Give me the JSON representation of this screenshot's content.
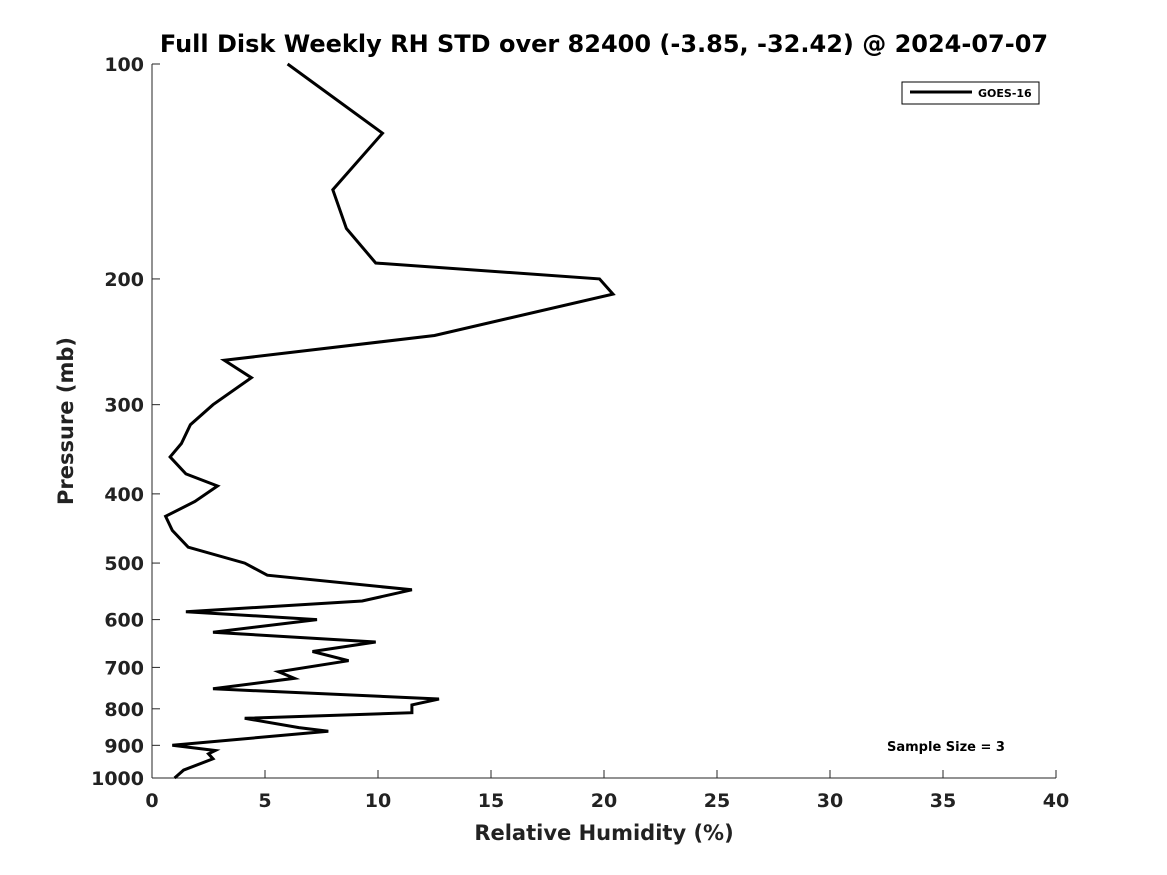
{
  "chart_data": {
    "type": "line",
    "title": "Full Disk Weekly RH STD over 82400 (-3.85, -32.42) @ 2024-07-07",
    "xlabel": "Relative Humidity (%)",
    "ylabel": "Pressure (mb)",
    "xlim": [
      0,
      40
    ],
    "ylim": [
      1000,
      100
    ],
    "y_scale": "log",
    "y_reversed": true,
    "grid": false,
    "legend_position": "top-right",
    "x_ticks": [
      0,
      5,
      10,
      15,
      20,
      25,
      30,
      35,
      40
    ],
    "x_tick_labels": [
      "0",
      "5",
      "10",
      "15",
      "20",
      "25",
      "30",
      "35",
      "40"
    ],
    "y_ticks": [
      100,
      200,
      300,
      400,
      500,
      600,
      700,
      800,
      900,
      1000
    ],
    "y_tick_labels": [
      "100",
      "200",
      "300",
      "400",
      "500",
      "600",
      "700",
      "800",
      "900",
      "1000"
    ],
    "series": [
      {
        "name": "GOES-16",
        "color": "#000000",
        "points": [
          [
            6.0,
            100
          ],
          [
            10.2,
            125
          ],
          [
            8.0,
            150
          ],
          [
            8.6,
            170
          ],
          [
            9.9,
            190
          ],
          [
            19.8,
            200
          ],
          [
            20.4,
            210
          ],
          [
            12.5,
            240
          ],
          [
            3.2,
            260
          ],
          [
            4.4,
            275
          ],
          [
            2.7,
            300
          ],
          [
            1.7,
            320
          ],
          [
            1.3,
            340
          ],
          [
            0.8,
            355
          ],
          [
            1.5,
            375
          ],
          [
            2.9,
            390
          ],
          [
            1.9,
            410
          ],
          [
            0.6,
            430
          ],
          [
            0.9,
            450
          ],
          [
            1.6,
            475
          ],
          [
            4.1,
            500
          ],
          [
            5.1,
            520
          ],
          [
            11.5,
            545
          ],
          [
            9.3,
            565
          ],
          [
            1.5,
            585
          ],
          [
            7.3,
            600
          ],
          [
            2.7,
            625
          ],
          [
            9.9,
            645
          ],
          [
            7.1,
            665
          ],
          [
            8.7,
            685
          ],
          [
            5.6,
            710
          ],
          [
            6.3,
            725
          ],
          [
            2.7,
            750
          ],
          [
            12.7,
            775
          ],
          [
            11.5,
            790
          ],
          [
            11.5,
            810
          ],
          [
            4.1,
            825
          ],
          [
            6.5,
            850
          ],
          [
            7.8,
            860
          ],
          [
            0.9,
            900
          ],
          [
            2.8,
            915
          ],
          [
            2.5,
            925
          ],
          [
            2.7,
            940
          ],
          [
            1.4,
            975
          ],
          [
            1.0,
            1000
          ]
        ]
      }
    ],
    "annotation": "Sample Size = 3"
  }
}
